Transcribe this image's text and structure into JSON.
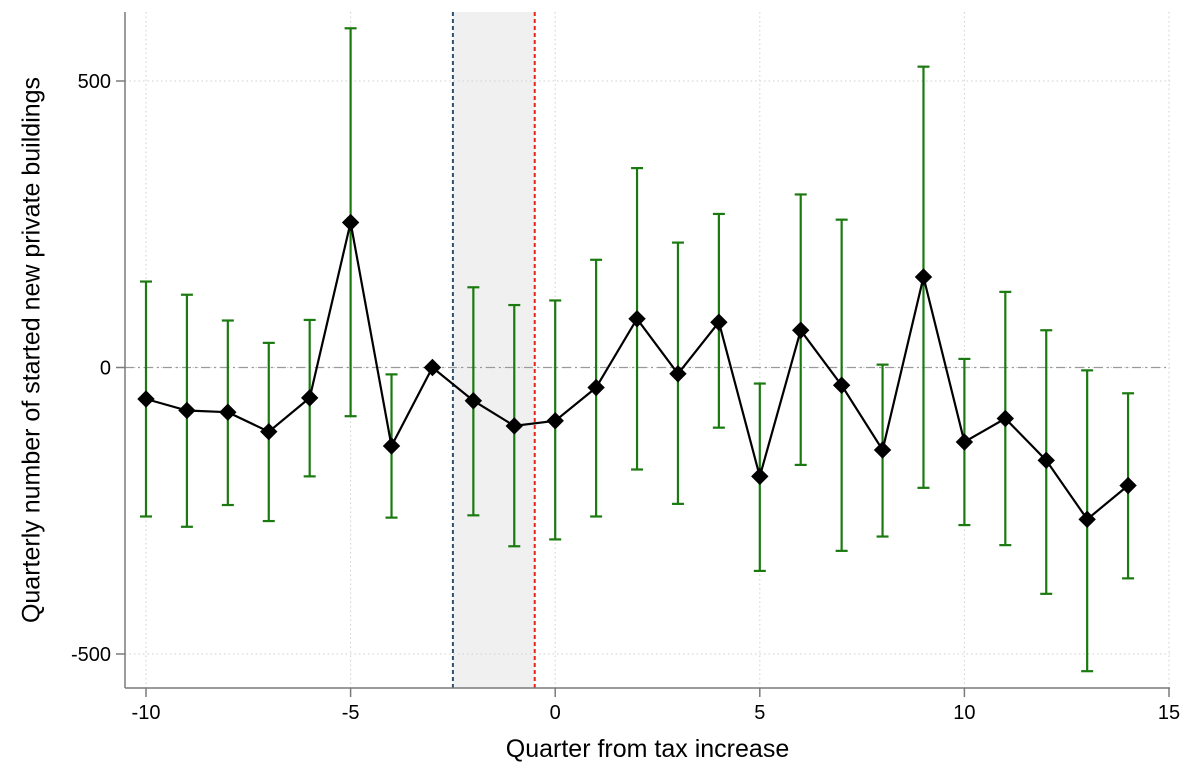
{
  "chart_data": {
    "type": "line",
    "title": "",
    "xlabel": "Quarter from tax increase",
    "ylabel": "Quarterly number of started new private buildings",
    "xlim": [
      -10,
      15
    ],
    "ylim": [
      -500,
      500
    ],
    "xticks": [
      -10,
      -5,
      0,
      5,
      10,
      15
    ],
    "yticks": [
      500,
      0,
      -500
    ],
    "xtick_labels": [
      "-10",
      "-5",
      "0",
      "5",
      "10",
      "15"
    ],
    "ytick_labels": [
      "500",
      "0",
      "-500"
    ],
    "grid": true,
    "reference_line_y": 0,
    "vertical_lines": [
      {
        "x": -2.5,
        "color": "#2f4f6f",
        "style": "dashed"
      },
      {
        "x": -0.5,
        "color": "#e8241c",
        "style": "dashed"
      }
    ],
    "shaded_region": {
      "x_from": -2.5,
      "x_to": -0.5,
      "color": "#f0f0f0"
    },
    "series": [
      {
        "x": [
          -10,
          -9,
          -8,
          -7,
          -6,
          -5,
          -4,
          -3,
          -2,
          -1,
          0,
          1,
          2,
          3,
          4,
          5,
          6,
          7,
          8,
          9,
          10,
          11,
          12,
          13,
          14
        ],
        "y": [
          -55,
          -75,
          -78,
          -112,
          -53,
          253,
          -137,
          0,
          -58,
          -102,
          -93,
          -35,
          85,
          -11,
          79,
          -190,
          65,
          -31,
          -144,
          158,
          -130,
          -89,
          -162,
          -265,
          -206
        ],
        "ci_low": [
          -260,
          -278,
          -240,
          -268,
          -190,
          -85,
          -262,
          0,
          -258,
          -312,
          -300,
          -260,
          -178,
          -238,
          -105,
          -355,
          -170,
          -320,
          -295,
          -210,
          -275,
          -310,
          -395,
          -530,
          -368
        ],
        "ci_high": [
          150,
          127,
          82,
          43,
          83,
          592,
          -12,
          0,
          140,
          109,
          117,
          188,
          348,
          218,
          268,
          -28,
          302,
          258,
          5,
          525,
          15,
          132,
          65,
          -5,
          -45
        ],
        "line_color": "#000000",
        "marker": "diamond",
        "errorbar_color": "#1a7a10"
      }
    ]
  }
}
